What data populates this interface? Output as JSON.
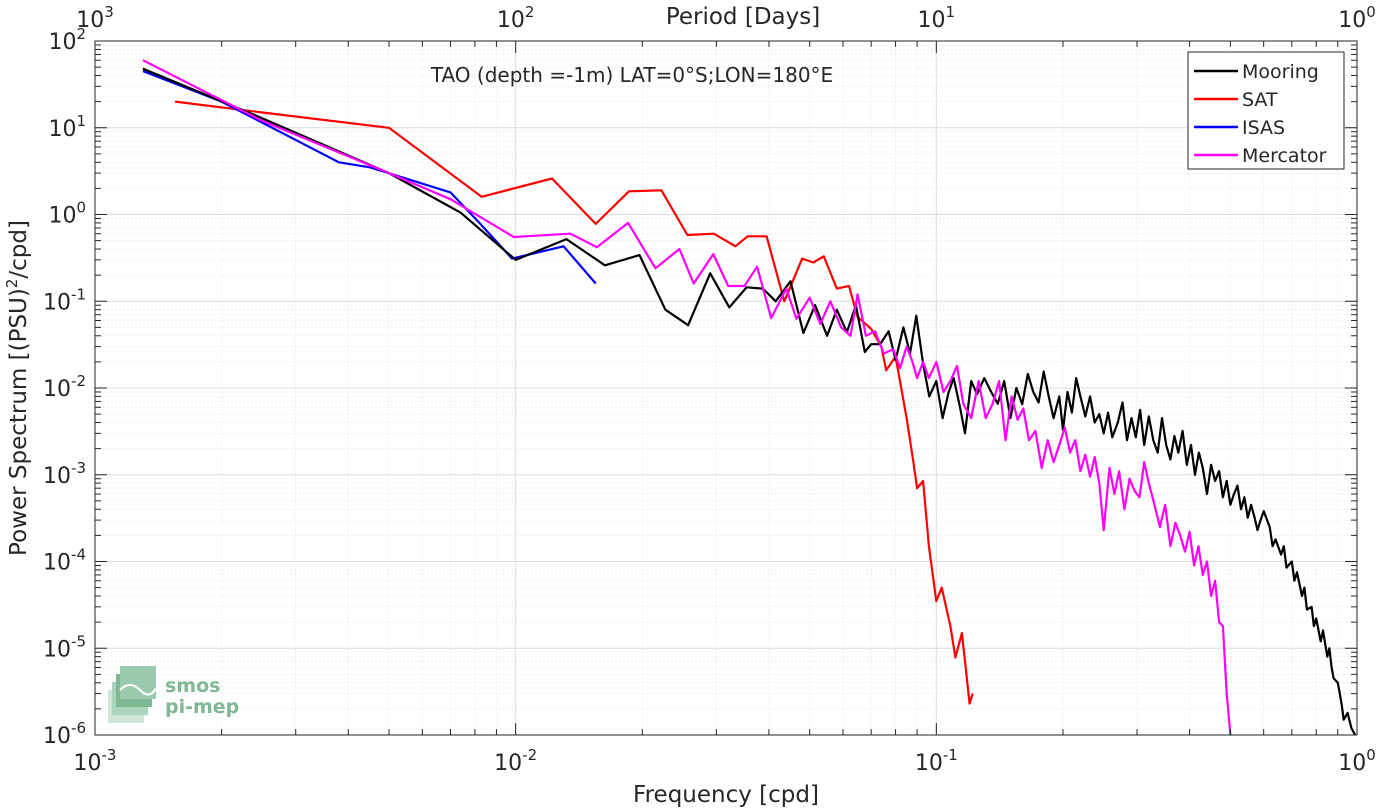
{
  "chart_data": {
    "type": "line",
    "title": "TAO (depth =-1m) LAT=0°S;LON=180°E",
    "xlabel": "Frequency [cpd]",
    "ylabel_prefix": "Power Spectrum [(PSU)",
    "ylabel_sup": "2",
    "ylabel_suffix": "/cpd]",
    "top_xlabel": "Period [Days]",
    "x_scale": "log",
    "y_scale": "log",
    "xlim": [
      0.001,
      1
    ],
    "ylim": [
      1e-06,
      100
    ],
    "grid": true,
    "legend_position": "top-right",
    "x_ticks": [
      {
        "value": 0.001,
        "base": "10",
        "exp": "-3"
      },
      {
        "value": 0.01,
        "base": "10",
        "exp": "-2"
      },
      {
        "value": 0.1,
        "base": "10",
        "exp": "-1"
      },
      {
        "value": 1,
        "base": "10",
        "exp": "0"
      }
    ],
    "y_ticks": [
      {
        "value": 100,
        "base": "10",
        "exp": "2"
      },
      {
        "value": 10,
        "base": "10",
        "exp": "1"
      },
      {
        "value": 1,
        "base": "10",
        "exp": "0"
      },
      {
        "value": 0.1,
        "base": "10",
        "exp": "-1"
      },
      {
        "value": 0.01,
        "base": "10",
        "exp": "-2"
      },
      {
        "value": 0.001,
        "base": "10",
        "exp": "-3"
      },
      {
        "value": 0.0001,
        "base": "10",
        "exp": "-4"
      },
      {
        "value": 1e-05,
        "base": "10",
        "exp": "-5"
      },
      {
        "value": 1e-06,
        "base": "10",
        "exp": "-6"
      }
    ],
    "top_ticks": [
      {
        "value": 0.001,
        "base": "10",
        "exp": "3"
      },
      {
        "value": 0.01,
        "base": "10",
        "exp": "2"
      },
      {
        "value": 0.1,
        "base": "10",
        "exp": "1"
      },
      {
        "value": 1,
        "base": "10",
        "exp": "0"
      }
    ],
    "series": [
      {
        "name": "Mooring",
        "color": "#000000",
        "points": [
          [
            0.0013,
            48
          ],
          [
            0.0024,
            14
          ],
          [
            0.005,
            3.0
          ],
          [
            0.0074,
            1.05
          ],
          [
            0.01,
            0.3
          ],
          [
            0.0132,
            0.52
          ],
          [
            0.0163,
            0.26
          ],
          [
            0.0197,
            0.34
          ],
          [
            0.0227,
            0.08
          ],
          [
            0.0257,
            0.053
          ],
          [
            0.029,
            0.21
          ],
          [
            0.0322,
            0.085
          ],
          [
            0.0354,
            0.145
          ],
          [
            0.0387,
            0.14
          ],
          [
            0.0415,
            0.1
          ],
          [
            0.045,
            0.17
          ],
          [
            0.0483,
            0.043
          ],
          [
            0.0515,
            0.09
          ],
          [
            0.055,
            0.04
          ],
          [
            0.058,
            0.08
          ],
          [
            0.0613,
            0.044
          ],
          [
            0.0644,
            0.09
          ],
          [
            0.0676,
            0.026
          ],
          [
            0.07,
            0.032
          ],
          [
            0.0735,
            0.032
          ],
          [
            0.077,
            0.045
          ],
          [
            0.08,
            0.021
          ],
          [
            0.0835,
            0.05
          ],
          [
            0.0866,
            0.025
          ],
          [
            0.0896,
            0.068
          ],
          [
            0.093,
            0.019
          ],
          [
            0.0962,
            0.008
          ],
          [
            0.1,
            0.012
          ],
          [
            0.1035,
            0.0045
          ],
          [
            0.107,
            0.009
          ],
          [
            0.11,
            0.013
          ],
          [
            0.1138,
            0.006
          ],
          [
            0.117,
            0.003
          ],
          [
            0.121,
            0.012
          ],
          [
            0.125,
            0.0085
          ],
          [
            0.13,
            0.013
          ],
          [
            0.135,
            0.009
          ],
          [
            0.14,
            0.0066
          ],
          [
            0.145,
            0.012
          ],
          [
            0.15,
            0.0045
          ],
          [
            0.155,
            0.01
          ],
          [
            0.16,
            0.0065
          ],
          [
            0.165,
            0.0145
          ],
          [
            0.17,
            0.009
          ],
          [
            0.175,
            0.0068
          ],
          [
            0.18,
            0.0155
          ],
          [
            0.185,
            0.008
          ],
          [
            0.19,
            0.0045
          ],
          [
            0.196,
            0.008
          ],
          [
            0.2,
            0.0033
          ],
          [
            0.205,
            0.009
          ],
          [
            0.21,
            0.0052
          ],
          [
            0.215,
            0.013
          ],
          [
            0.22,
            0.008
          ],
          [
            0.226,
            0.0047
          ],
          [
            0.232,
            0.008
          ],
          [
            0.238,
            0.004
          ],
          [
            0.244,
            0.005
          ],
          [
            0.25,
            0.003
          ],
          [
            0.256,
            0.0052
          ],
          [
            0.262,
            0.0027
          ],
          [
            0.27,
            0.004
          ],
          [
            0.277,
            0.0068
          ],
          [
            0.284,
            0.0025
          ],
          [
            0.291,
            0.0045
          ],
          [
            0.298,
            0.0027
          ],
          [
            0.305,
            0.0056
          ],
          [
            0.312,
            0.0022
          ],
          [
            0.32,
            0.0047
          ],
          [
            0.328,
            0.0025
          ],
          [
            0.336,
            0.0018
          ],
          [
            0.344,
            0.0045
          ],
          [
            0.352,
            0.0022
          ],
          [
            0.36,
            0.0015
          ],
          [
            0.368,
            0.0028
          ],
          [
            0.376,
            0.0018
          ],
          [
            0.385,
            0.0032
          ],
          [
            0.394,
            0.0013
          ],
          [
            0.403,
            0.0022
          ],
          [
            0.412,
            0.001
          ],
          [
            0.421,
            0.0018
          ],
          [
            0.43,
            0.0012
          ],
          [
            0.44,
            0.0006
          ],
          [
            0.45,
            0.0013
          ],
          [
            0.46,
            0.00085
          ],
          [
            0.47,
            0.0011
          ],
          [
            0.48,
            0.00055
          ],
          [
            0.49,
            0.00085
          ],
          [
            0.5,
            0.00045
          ],
          [
            0.51,
            0.0006
          ],
          [
            0.52,
            0.00075
          ],
          [
            0.53,
            0.0004
          ],
          [
            0.54,
            0.00055
          ],
          [
            0.55,
            0.00032
          ],
          [
            0.56,
            0.00045
          ],
          [
            0.57,
            0.00033
          ],
          [
            0.58,
            0.00023
          ],
          [
            0.59,
            0.0003
          ],
          [
            0.6,
            0.00038
          ],
          [
            0.62,
            0.00025
          ],
          [
            0.63,
            0.00015
          ],
          [
            0.64,
            0.00018
          ],
          [
            0.66,
            0.00012
          ],
          [
            0.67,
            0.00015
          ],
          [
            0.68,
            8.5e-05
          ],
          [
            0.7,
            0.0001
          ],
          [
            0.71,
            6e-05
          ],
          [
            0.72,
            7.5e-05
          ],
          [
            0.74,
            4e-05
          ],
          [
            0.75,
            5e-05
          ],
          [
            0.76,
            2.8e-05
          ],
          [
            0.78,
            3e-05
          ],
          [
            0.79,
            1.8e-05
          ],
          [
            0.8,
            2.2e-05
          ],
          [
            0.82,
            1.2e-05
          ],
          [
            0.83,
            1.6e-05
          ],
          [
            0.85,
            8e-06
          ],
          [
            0.86,
            1e-05
          ],
          [
            0.87,
            6e-06
          ],
          [
            0.88,
            4.5e-06
          ],
          [
            0.9,
            4e-06
          ],
          [
            0.91,
            3e-06
          ],
          [
            0.92,
            2.2e-06
          ],
          [
            0.93,
            1.5e-06
          ],
          [
            0.95,
            1.8e-06
          ],
          [
            0.97,
            1.2e-06
          ],
          [
            0.99,
            1e-06
          ]
        ]
      },
      {
        "name": "SAT",
        "color": "#ff0000",
        "points": [
          [
            0.00155,
            20
          ],
          [
            0.0025,
            15
          ],
          [
            0.005,
            10
          ],
          [
            0.0083,
            1.6
          ],
          [
            0.0122,
            2.6
          ],
          [
            0.0155,
            0.78
          ],
          [
            0.0186,
            1.85
          ],
          [
            0.0222,
            1.9
          ],
          [
            0.0256,
            0.58
          ],
          [
            0.0296,
            0.6
          ],
          [
            0.0333,
            0.43
          ],
          [
            0.0356,
            0.56
          ],
          [
            0.0395,
            0.56
          ],
          [
            0.0435,
            0.1
          ],
          [
            0.048,
            0.31
          ],
          [
            0.051,
            0.28
          ],
          [
            0.054,
            0.33
          ],
          [
            0.058,
            0.14
          ],
          [
            0.062,
            0.15
          ],
          [
            0.065,
            0.066
          ],
          [
            0.07,
            0.048
          ],
          [
            0.074,
            0.03
          ],
          [
            0.076,
            0.016
          ],
          [
            0.08,
            0.023
          ],
          [
            0.085,
            0.0045
          ],
          [
            0.088,
            0.0015
          ],
          [
            0.09,
            0.0007
          ],
          [
            0.093,
            0.00085
          ],
          [
            0.096,
            0.00015
          ],
          [
            0.099,
            5e-05
          ],
          [
            0.1,
            3.5e-05
          ],
          [
            0.103,
            5e-05
          ],
          [
            0.108,
            1.8e-05
          ],
          [
            0.111,
            7.8e-06
          ],
          [
            0.115,
            1.5e-05
          ],
          [
            0.12,
            2.3e-06
          ],
          [
            0.122,
            3e-06
          ]
        ]
      },
      {
        "name": "ISAS",
        "color": "#0000ff",
        "points": [
          [
            0.0013,
            45
          ],
          [
            0.002,
            20
          ],
          [
            0.0038,
            4
          ],
          [
            0.0045,
            3.5
          ],
          [
            0.007,
            1.8
          ],
          [
            0.0082,
            0.8
          ],
          [
            0.0098,
            0.31
          ],
          [
            0.013,
            0.43
          ],
          [
            0.0155,
            0.16
          ]
        ]
      },
      {
        "name": "Mercator",
        "color": "#ff00ff",
        "points": [
          [
            0.0013,
            60
          ],
          [
            0.0025,
            12
          ],
          [
            0.005,
            3.0
          ],
          [
            0.007,
            1.5
          ],
          [
            0.0099,
            0.55
          ],
          [
            0.0135,
            0.6
          ],
          [
            0.0156,
            0.42
          ],
          [
            0.0185,
            0.8
          ],
          [
            0.0215,
            0.24
          ],
          [
            0.0245,
            0.4
          ],
          [
            0.0265,
            0.16
          ],
          [
            0.0295,
            0.35
          ],
          [
            0.032,
            0.15
          ],
          [
            0.035,
            0.15
          ],
          [
            0.0375,
            0.25
          ],
          [
            0.0405,
            0.064
          ],
          [
            0.044,
            0.14
          ],
          [
            0.0465,
            0.063
          ],
          [
            0.05,
            0.11
          ],
          [
            0.053,
            0.055
          ],
          [
            0.056,
            0.1
          ],
          [
            0.0594,
            0.05
          ],
          [
            0.0625,
            0.04
          ],
          [
            0.065,
            0.12
          ],
          [
            0.068,
            0.04
          ],
          [
            0.0715,
            0.045
          ],
          [
            0.075,
            0.025
          ],
          [
            0.079,
            0.028
          ],
          [
            0.082,
            0.017
          ],
          [
            0.085,
            0.03
          ],
          [
            0.0875,
            0.021
          ],
          [
            0.09,
            0.013
          ],
          [
            0.093,
            0.02
          ],
          [
            0.096,
            0.013
          ],
          [
            0.1,
            0.02
          ],
          [
            0.104,
            0.009
          ],
          [
            0.108,
            0.012
          ],
          [
            0.112,
            0.018
          ],
          [
            0.116,
            0.0065
          ],
          [
            0.121,
            0.0045
          ],
          [
            0.126,
            0.012
          ],
          [
            0.131,
            0.0045
          ],
          [
            0.136,
            0.0065
          ],
          [
            0.141,
            0.012
          ],
          [
            0.146,
            0.0025
          ],
          [
            0.151,
            0.008
          ],
          [
            0.156,
            0.0043
          ],
          [
            0.161,
            0.0058
          ],
          [
            0.166,
            0.0025
          ],
          [
            0.172,
            0.0032
          ],
          [
            0.178,
            0.0012
          ],
          [
            0.184,
            0.0025
          ],
          [
            0.19,
            0.0014
          ],
          [
            0.196,
            0.0022
          ],
          [
            0.202,
            0.0035
          ],
          [
            0.208,
            0.0018
          ],
          [
            0.214,
            0.0025
          ],
          [
            0.22,
            0.0011
          ],
          [
            0.226,
            0.0017
          ],
          [
            0.232,
            0.00095
          ],
          [
            0.238,
            0.0016
          ],
          [
            0.244,
            0.0008
          ],
          [
            0.25,
            0.00023
          ],
          [
            0.258,
            0.0012
          ],
          [
            0.265,
            0.0006
          ],
          [
            0.272,
            0.0011
          ],
          [
            0.28,
            0.0004
          ],
          [
            0.288,
            0.0009
          ],
          [
            0.296,
            0.00065
          ],
          [
            0.304,
            0.00055
          ],
          [
            0.312,
            0.0014
          ],
          [
            0.32,
            0.0008
          ],
          [
            0.33,
            0.00045
          ],
          [
            0.34,
            0.00025
          ],
          [
            0.35,
            0.00045
          ],
          [
            0.36,
            0.00015
          ],
          [
            0.37,
            0.00028
          ],
          [
            0.38,
            0.0002
          ],
          [
            0.39,
            0.00013
          ],
          [
            0.4,
            0.00022
          ],
          [
            0.41,
            9e-05
          ],
          [
            0.42,
            0.00015
          ],
          [
            0.43,
            7e-05
          ],
          [
            0.44,
            0.0001
          ],
          [
            0.45,
            4e-05
          ],
          [
            0.46,
            6e-05
          ],
          [
            0.47,
            2e-05
          ],
          [
            0.48,
            1.8e-05
          ],
          [
            0.49,
            3e-06
          ],
          [
            0.5,
            1e-06
          ]
        ]
      }
    ],
    "legend": [
      "Mooring",
      "SAT",
      "ISAS",
      "Mercator"
    ]
  },
  "watermark": {
    "line1": "smos",
    "line2": "pi-mep",
    "color": "#7fb894"
  }
}
